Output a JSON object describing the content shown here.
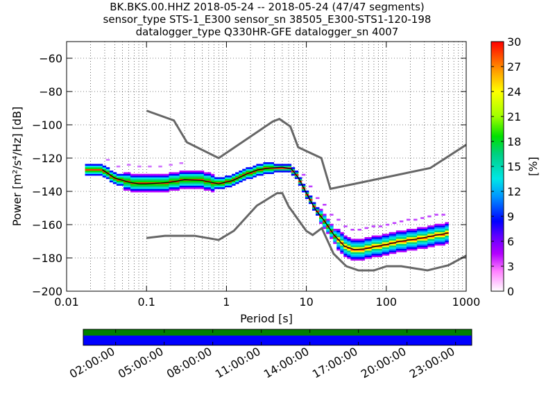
{
  "titles": [
    "BK.BKS.00.HHZ   2018-05-24 -- 2018-05-24  (47/47 segments)",
    "sensor_type STS-1_E300 sensor_sn 38505_E300-STS1-120-198",
    "datalogger_type Q330HR-GFE datalogger_sn 4007"
  ],
  "chart_data": {
    "type": "heatmap",
    "xlabel": "Period [s]",
    "ylabel": "Power [m²/s⁴/Hz] [dB]",
    "x_scale": "log",
    "xlim": [
      0.01,
      1000
    ],
    "ylim": [
      -200,
      -50
    ],
    "x_ticks": [
      0.01,
      0.1,
      1,
      10,
      100,
      1000
    ],
    "x_tick_labels": [
      "0.01",
      "0.1",
      "1",
      "10",
      "100",
      "1000"
    ],
    "y_ticks": [
      -200,
      -180,
      -160,
      -140,
      -120,
      -100,
      -80,
      -60
    ],
    "y_tick_labels": [
      "−200",
      "−180",
      "−160",
      "−140",
      "−120",
      "−100",
      "−80",
      "−60"
    ],
    "colorbar": {
      "label": "[%]",
      "ticks": [
        0,
        3,
        6,
        9,
        12,
        15,
        18,
        21,
        24,
        27,
        30
      ],
      "range": [
        0,
        30
      ]
    },
    "nlnm": {
      "name": "NLNM",
      "x": [
        0.1,
        0.17,
        0.4,
        0.8,
        1.24,
        2.4,
        4.3,
        5.0,
        6.0,
        10,
        12,
        15.6,
        21.9,
        31.6,
        45,
        70,
        101,
        154,
        328,
        600,
        1000
      ],
      "y": [
        -168,
        -166.7,
        -166.7,
        -169.2,
        -163.7,
        -148.6,
        -141.1,
        -141.1,
        -149.0,
        -163.8,
        -166.2,
        -162.1,
        -177.5,
        -185.0,
        -187.5,
        -187.5,
        -185.0,
        -185.0,
        -187.5,
        -184.4,
        -178.6
      ]
    },
    "nhnm": {
      "name": "NHNM",
      "x": [
        0.1,
        0.22,
        0.32,
        0.8,
        3.8,
        4.6,
        6.3,
        7.9,
        15.4,
        20,
        354.8,
        1000
      ],
      "y": [
        -91.5,
        -97.4,
        -110.5,
        -120.0,
        -98.0,
        -96.5,
        -101.0,
        -113.5,
        -120.0,
        -138.5,
        -126.0,
        -112.0
      ]
    },
    "mean_curve": {
      "x": [
        0.028,
        0.04,
        0.06,
        0.08,
        0.1,
        0.15,
        0.2,
        0.3,
        0.5,
        0.8,
        1.2,
        1.8,
        2.5,
        3.5,
        5,
        6.5,
        8,
        10,
        13,
        17,
        22,
        30,
        40,
        55,
        75,
        100,
        150,
        250,
        400,
        600
      ],
      "y": [
        -127,
        -132,
        -134.5,
        -135.5,
        -135.5,
        -135,
        -134.5,
        -133,
        -133.5,
        -135.5,
        -133.5,
        -129.5,
        -127,
        -126,
        -125.5,
        -126.5,
        -132,
        -141,
        -151,
        -158,
        -166,
        -173,
        -175,
        -174.5,
        -173,
        -172,
        -170,
        -168.5,
        -166.5,
        -165
      ]
    },
    "heatmap_band": {
      "x_min": 0.017,
      "x_max": 600,
      "outlier_upper_offset": 6,
      "outlier_lower_offset": 5
    },
    "time_bar": {
      "tick_labels": [
        "02:00:00",
        "05:00:00",
        "08:00:00",
        "11:00:00",
        "14:00:00",
        "17:00:00",
        "20:00:00",
        "23:00:00"
      ],
      "tick_hours": [
        2,
        5,
        8,
        11,
        14,
        17,
        20,
        23
      ],
      "range_hours": [
        0,
        24
      ],
      "colors": {
        "top": "#008000",
        "bottom": "#0000ff"
      }
    }
  }
}
